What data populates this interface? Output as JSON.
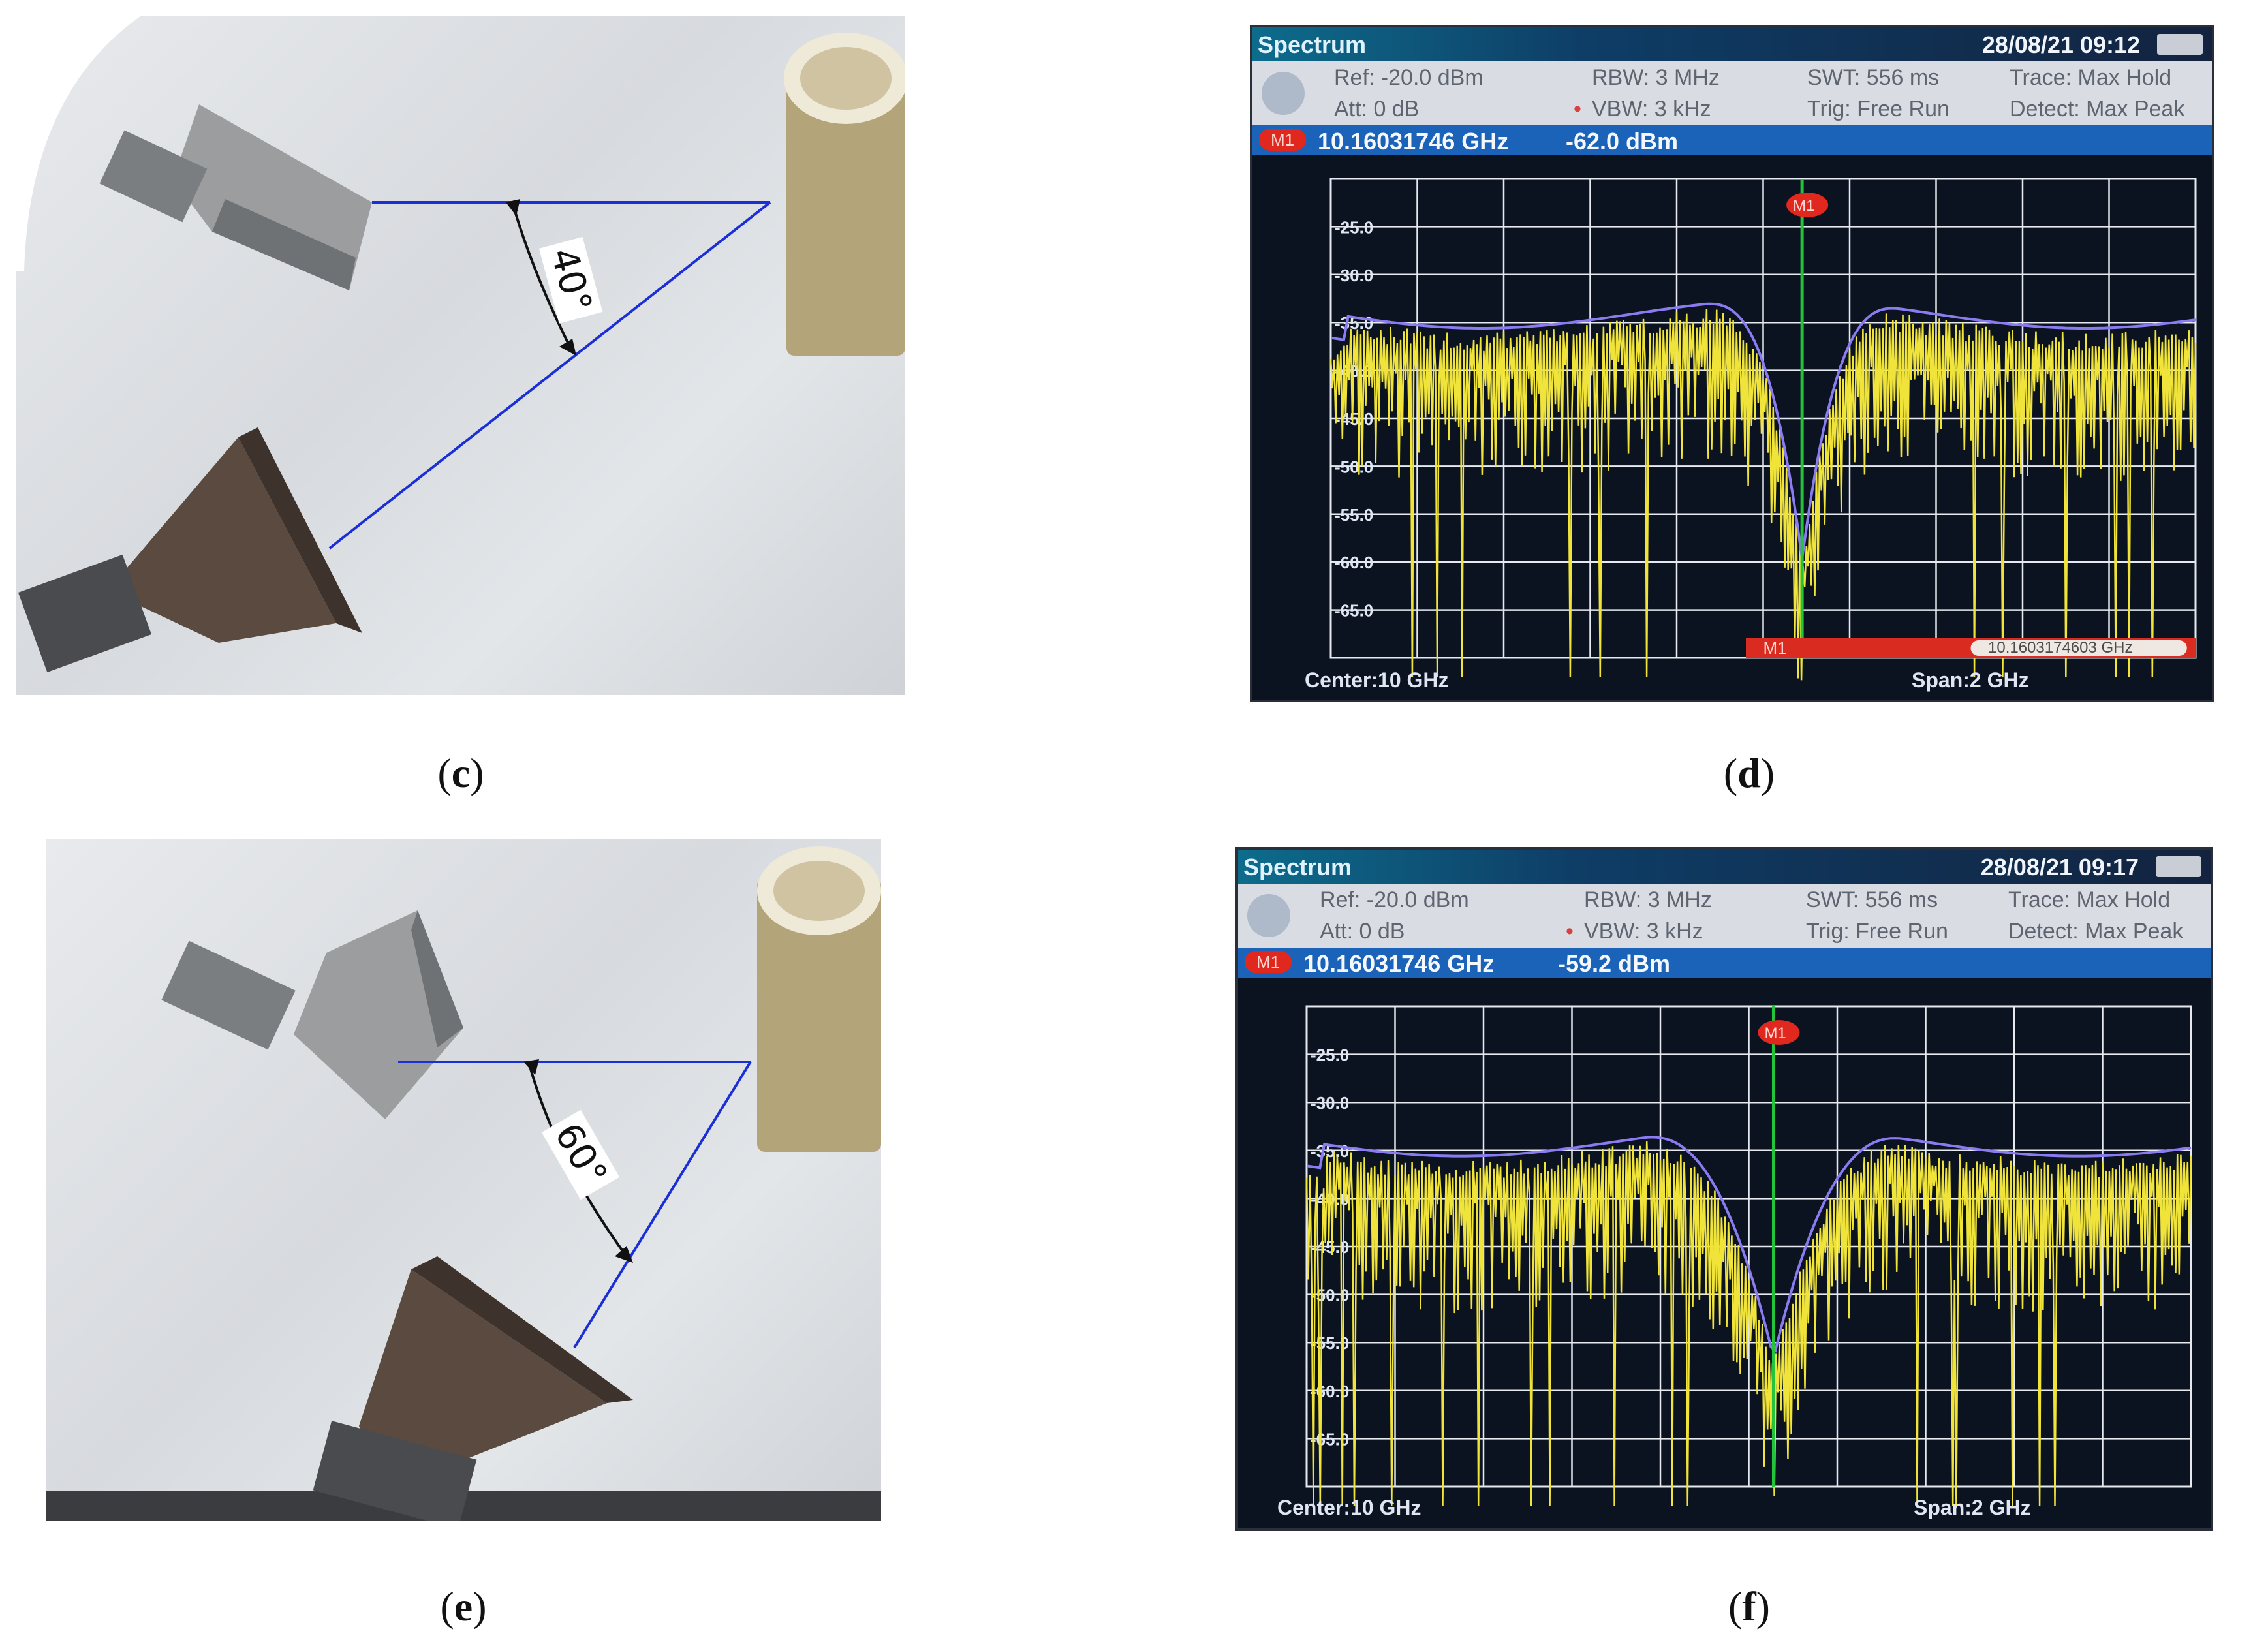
{
  "panels": {
    "c": {
      "caption": "c",
      "angle": "40°"
    },
    "d": {
      "caption": "d",
      "title": "Spectrum",
      "datetime": "28/08/21    09:12",
      "ref": "Ref:  -20.0 dBm",
      "att": "Att:  0 dB",
      "rbw": "RBW:   3 MHz",
      "vbw": "VBW:   3 kHz",
      "swt": "SWT:   556 ms",
      "trig": "Trig:   Free Run",
      "trace": "Trace:    Max Hold",
      "detect": "Detect:  Max Peak",
      "marker_tag": "M1",
      "marker_freq": "10.16031746  GHz",
      "marker_level": "-62.0  dBm",
      "marker_readout_tag": "M1",
      "marker_readout": "10.1603174603 GHz",
      "center": "Center:10 GHz",
      "span": "Span:2 GHz",
      "y_ticks": [
        "-25.0",
        "-30.0",
        "-35.0",
        "-40.0",
        "-45.0",
        "-50.0",
        "-55.0",
        "-60.0",
        "-65.0"
      ]
    },
    "e": {
      "caption": "e",
      "angle": "60°"
    },
    "f": {
      "caption": "f",
      "title": "Spectrum",
      "datetime": "28/08/21    09:17",
      "ref": "Ref:  -20.0 dBm",
      "att": "Att:  0 dB",
      "rbw": "RBW:   3 MHz",
      "vbw": "VBW:   3 kHz",
      "swt": "SWT:   556 ms",
      "trig": "Trig:   Free Run",
      "trace": "Trace:    Max Hold",
      "detect": "Detect:  Max Peak",
      "marker_tag": "M1",
      "marker_freq": "10.16031746  GHz",
      "marker_level": "-59.2  dBm",
      "center": "Center:10 GHz",
      "span": "Span:2 GHz",
      "y_ticks": [
        "-25.0",
        "-30.0",
        "-35.0",
        "-40.0",
        "-45.0",
        "-50.0",
        "-55.0",
        "-60.0",
        "-65.0"
      ]
    }
  },
  "colors": {
    "trace_yellow": "#f0e43a",
    "max_hold_purple": "#8a7cf0",
    "marker_green": "#23c43a",
    "grid": "#e6e9ef",
    "angle_line": "#1a2fd6"
  }
}
